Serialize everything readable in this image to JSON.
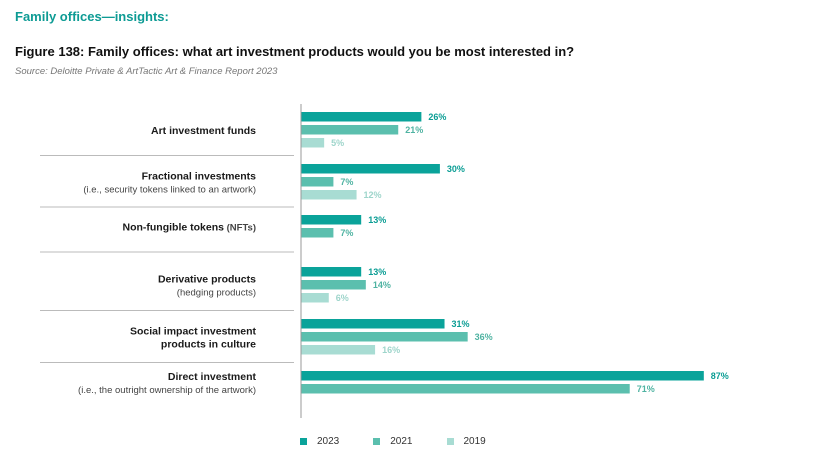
{
  "header": {
    "section": "Family offices—insights:",
    "title": "Figure 138: Family offices: what art investment products would you be most interested in?",
    "source": "Source: Deloitte Private & ArtTactic Art & Finance Report 2023"
  },
  "colors": {
    "2023": "#0aa39a",
    "2021": "#5bbfae",
    "2019": "#a8dcd3",
    "label_2023": "#0a9d94",
    "label_2021": "#4fb3a2",
    "label_2019": "#9ed5cb",
    "divider": "#bbbbbb",
    "axis": "#999999"
  },
  "chart_data": {
    "type": "bar",
    "orientation": "horizontal",
    "xlim": [
      0,
      100
    ],
    "grid": false,
    "legend_position": "bottom",
    "series_names": [
      "2023",
      "2021",
      "2019"
    ],
    "categories": [
      {
        "name": "Art investment funds",
        "sub": "",
        "values": [
          {
            "series": "2023",
            "value": 26,
            "label": "26%"
          },
          {
            "series": "2021",
            "value": 21,
            "label": "21%"
          },
          {
            "series": "2019",
            "value": 5,
            "label": "5%"
          }
        ]
      },
      {
        "name": "Fractional investments",
        "sub": "(i.e., security tokens linked to an artwork)",
        "values": [
          {
            "series": "2023",
            "value": 30,
            "label": "30%"
          },
          {
            "series": "2021",
            "value": 7,
            "label": "7%"
          },
          {
            "series": "2019",
            "value": 12,
            "label": "12%"
          }
        ]
      },
      {
        "name": "Non-fungible tokens",
        "name_suffix": " (NFTs)",
        "sub": "",
        "values": [
          {
            "series": "2023",
            "value": 13,
            "label": "13%"
          },
          {
            "series": "2021",
            "value": 7,
            "label": "7%"
          }
        ]
      },
      {
        "name": "Derivative products",
        "sub": "(hedging products)",
        "values": [
          {
            "series": "2023",
            "value": 13,
            "label": "13%"
          },
          {
            "series": "2021",
            "value": 14,
            "label": "14%"
          },
          {
            "series": "2019",
            "value": 6,
            "label": "6%"
          }
        ]
      },
      {
        "name": "Social impact investment",
        "name2": "products in culture",
        "sub": "",
        "values": [
          {
            "series": "2023",
            "value": 31,
            "label": "31%"
          },
          {
            "series": "2021",
            "value": 36,
            "label": "36%"
          },
          {
            "series": "2019",
            "value": 16,
            "label": "16%"
          }
        ]
      },
      {
        "name": "Direct investment",
        "sub": "(i.e., the outright ownership of the artwork)",
        "values": [
          {
            "series": "2023",
            "value": 87,
            "label": "87%"
          },
          {
            "series": "2021",
            "value": 71,
            "label": "71%"
          }
        ]
      }
    ]
  },
  "legend": [
    {
      "key": "2023",
      "label": "2023"
    },
    {
      "key": "2021",
      "label": "2021"
    },
    {
      "key": "2019",
      "label": "2019"
    }
  ]
}
